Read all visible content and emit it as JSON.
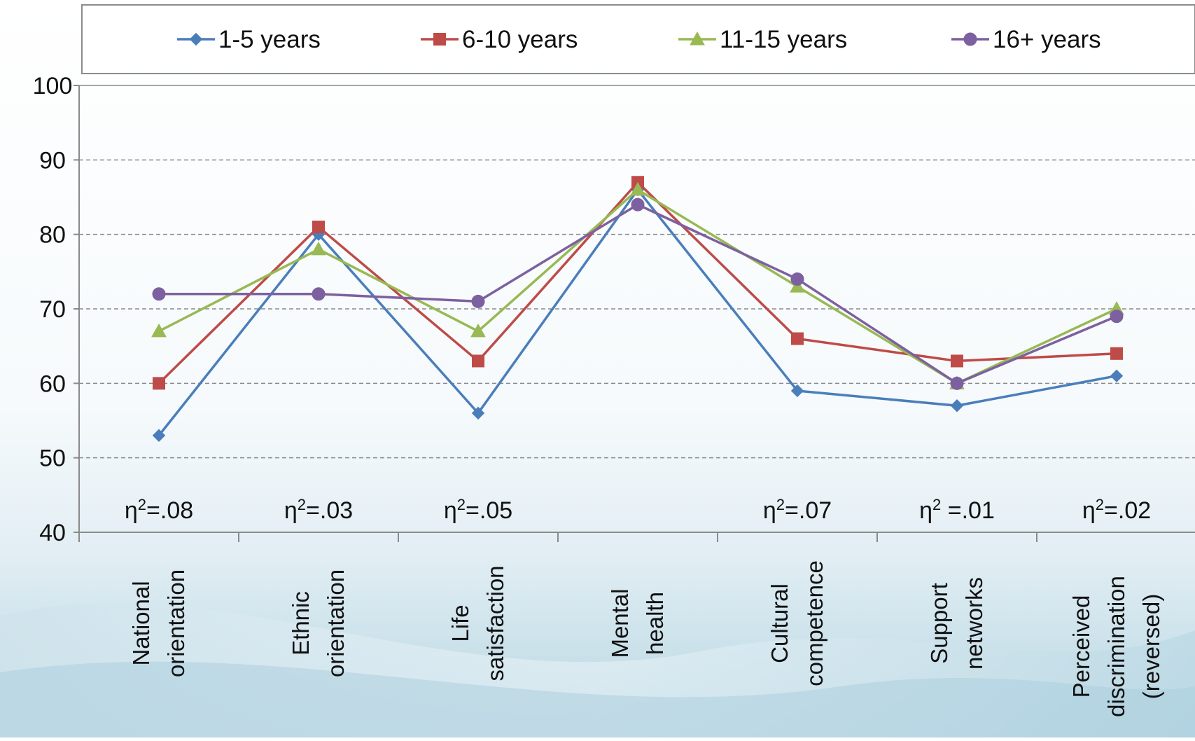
{
  "chart_data": {
    "type": "line",
    "categories": [
      [
        "National",
        "orientation"
      ],
      [
        "Ethnic",
        "orientation"
      ],
      [
        "Life",
        "satisfaction"
      ],
      [
        "Mental",
        "health"
      ],
      [
        "Cultural",
        "competence"
      ],
      [
        "Support",
        "networks"
      ],
      [
        "Perceived",
        "discrimination",
        "(reversed)"
      ]
    ],
    "series": [
      {
        "name": "1-5 years",
        "color": "#4a7ebb",
        "marker": "diamond",
        "values": [
          53,
          80,
          56,
          86,
          59,
          57,
          61
        ]
      },
      {
        "name": "6-10 years",
        "color": "#be4b48",
        "marker": "square",
        "values": [
          60,
          81,
          63,
          87,
          66,
          63,
          64
        ]
      },
      {
        "name": "11-15 years",
        "color": "#98b954",
        "marker": "triangle",
        "values": [
          67,
          78,
          67,
          86,
          73,
          60,
          70
        ]
      },
      {
        "name": "16+ years",
        "color": "#7d60a0",
        "marker": "circle",
        "values": [
          72,
          72,
          71,
          84,
          74,
          60,
          69
        ]
      }
    ],
    "annotations": [
      {
        "category_index": 0,
        "prefix": "η",
        "sup": "2",
        "text": "=.08"
      },
      {
        "category_index": 1,
        "prefix": "η",
        "sup": "2",
        "text": "=.03"
      },
      {
        "category_index": 2,
        "prefix": "η",
        "sup": "2",
        "text": "=.05"
      },
      {
        "category_index": 4,
        "prefix": "η",
        "sup": "2",
        "text": "=.07"
      },
      {
        "category_index": 5,
        "prefix": "η",
        "sup": "2",
        "text": " =.01"
      },
      {
        "category_index": 6,
        "prefix": "η",
        "sup": "2",
        "text": "=.02"
      }
    ],
    "yticks": [
      40,
      50,
      60,
      70,
      80,
      90,
      100
    ],
    "ylim": [
      40,
      100
    ],
    "title": "",
    "xlabel": "",
    "ylabel": "",
    "grid": "horizontal dashed",
    "legend_position": "top"
  }
}
